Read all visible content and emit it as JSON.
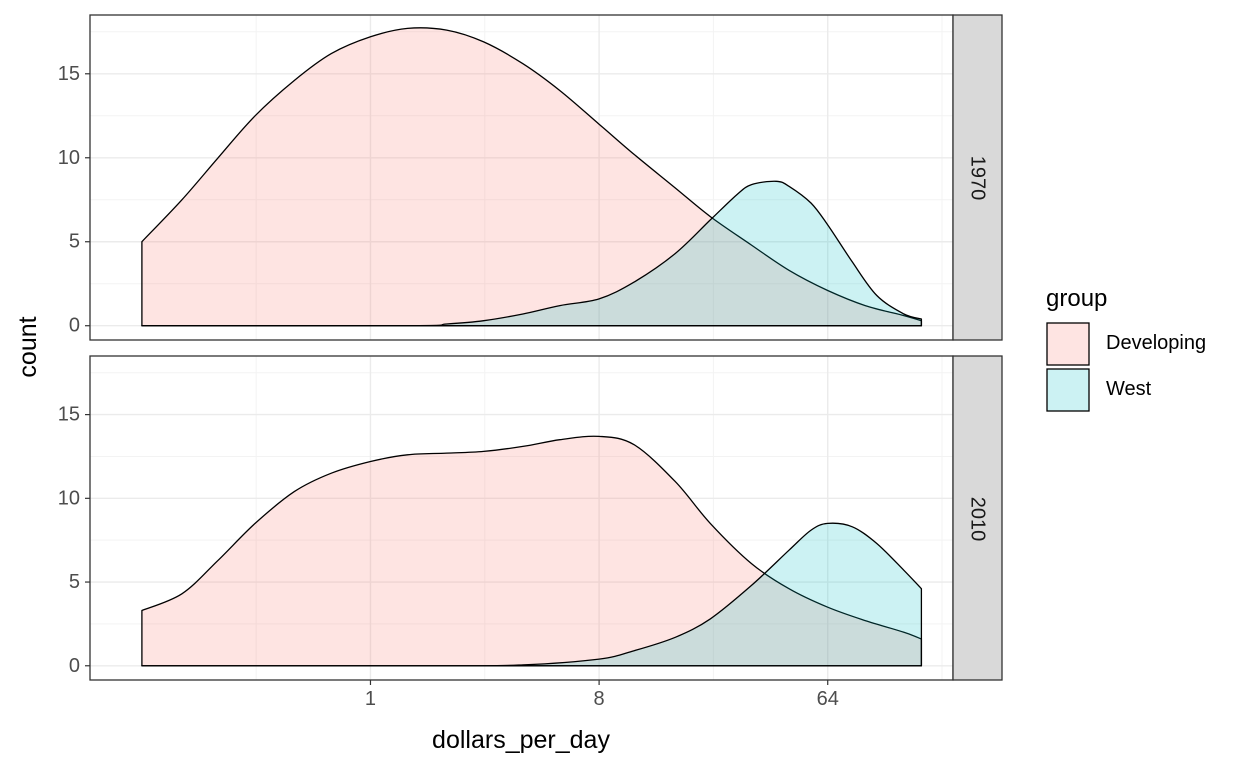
{
  "chart_data": {
    "type": "area",
    "xlabel": "dollars_per_day",
    "ylabel": "count",
    "x_scale": "log2",
    "x_ticks": [
      {
        "value": 1,
        "label": "1"
      },
      {
        "value": 8,
        "label": "8"
      },
      {
        "value": 64,
        "label": "64"
      }
    ],
    "xlim": [
      0.078,
      200
    ],
    "ylim": [
      -0.85,
      18.5
    ],
    "y_ticks": [
      {
        "value": 0,
        "label": "0"
      },
      {
        "value": 5,
        "label": "5"
      },
      {
        "value": 10,
        "label": "10"
      },
      {
        "value": 15,
        "label": "15"
      }
    ],
    "grid": true,
    "legend": {
      "title": "group",
      "position": "right",
      "entries": [
        {
          "label": "Developing",
          "color": "#F8766D"
        },
        {
          "label": "West",
          "color": "#00BFC4"
        }
      ]
    },
    "panels": [
      {
        "strip": "1970",
        "series": [
          {
            "name": "Developing",
            "color": "#F8766D",
            "x": [
              0.125,
              0.18,
              0.25,
              0.35,
              0.5,
              0.7,
              1,
              1.4,
              2,
              2.8,
              4,
              5.6,
              8,
              11,
              16,
              22,
              32,
              45,
              64,
              90,
              128,
              150
            ],
            "y": [
              5.0,
              7.5,
              10.0,
              12.5,
              14.6,
              16.2,
              17.2,
              17.7,
              17.6,
              16.9,
              15.6,
              14.0,
              12.0,
              10.2,
              8.2,
              6.5,
              4.8,
              3.3,
              2.1,
              1.2,
              0.6,
              0.3
            ]
          },
          {
            "name": "West",
            "color": "#00BFC4",
            "x": [
              0.125,
              1.4,
              2,
              2.8,
              4,
              5.6,
              8,
              11,
              16,
              22,
              28,
              32,
              40,
              45,
              55,
              64,
              80,
              100,
              128,
              150
            ],
            "y": [
              0,
              0,
              0.1,
              0.3,
              0.7,
              1.2,
              1.6,
              2.6,
              4.3,
              6.3,
              7.8,
              8.4,
              8.6,
              8.3,
              7.3,
              6.0,
              3.8,
              1.8,
              0.7,
              0.4
            ]
          }
        ]
      },
      {
        "strip": "2010",
        "series": [
          {
            "name": "Developing",
            "color": "#F8766D",
            "x": [
              0.125,
              0.18,
              0.25,
              0.35,
              0.5,
              0.7,
              1,
              1.4,
              2,
              2.8,
              4,
              5.6,
              8,
              11,
              16,
              22,
              32,
              45,
              64,
              90,
              128,
              150
            ],
            "y": [
              3.3,
              4.3,
              6.3,
              8.5,
              10.4,
              11.5,
              12.2,
              12.6,
              12.7,
              12.8,
              13.1,
              13.5,
              13.7,
              13.2,
              11.0,
              8.5,
              6.1,
              4.6,
              3.5,
              2.7,
              2.0,
              1.6
            ]
          },
          {
            "name": "West",
            "color": "#00BFC4",
            "x": [
              0.125,
              2,
              4,
              8,
              11,
              16,
              22,
              32,
              45,
              55,
              64,
              80,
              100,
              128,
              150
            ],
            "y": [
              0,
              0,
              0.05,
              0.4,
              0.9,
              1.7,
              2.8,
              4.8,
              6.9,
              8.1,
              8.5,
              8.3,
              7.3,
              5.7,
              4.6
            ]
          }
        ]
      }
    ]
  }
}
